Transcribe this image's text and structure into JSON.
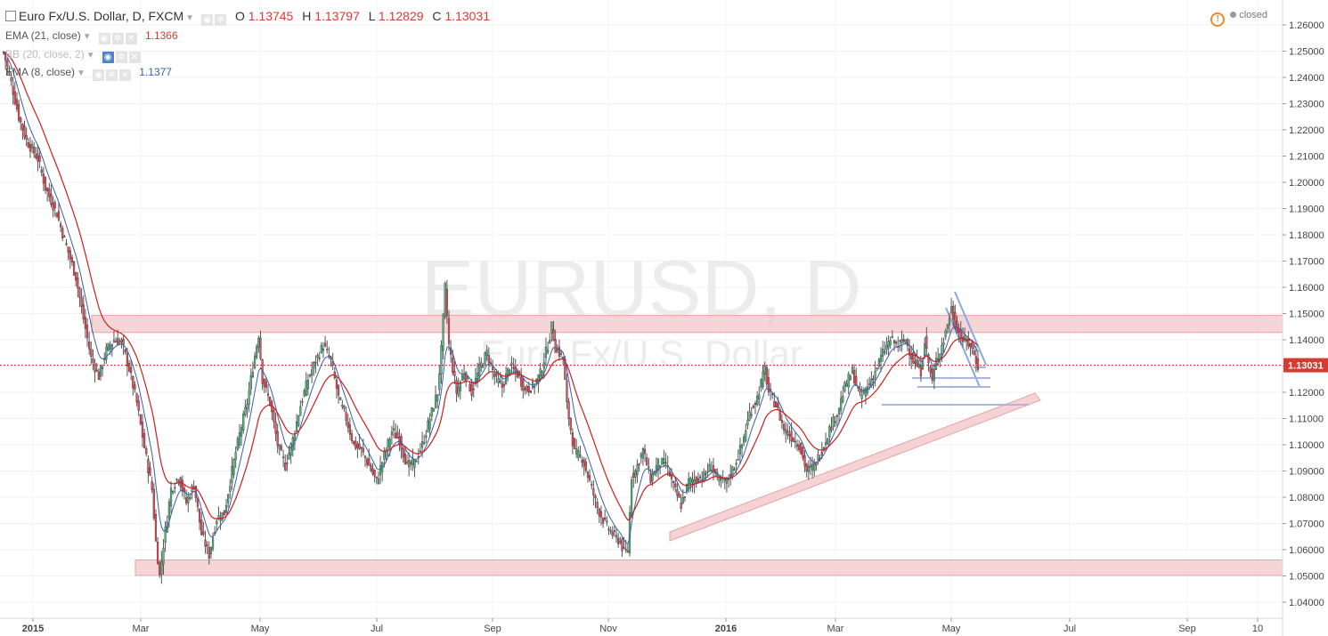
{
  "header": {
    "symbol_title": "Euro Fx/U.S. Dollar, D, FXCM",
    "ohlc": {
      "o_label": "O",
      "o": "1.13745",
      "h_label": "H",
      "h": "1.13797",
      "l_label": "L",
      "l": "1.12829",
      "c_label": "C",
      "c": "1.13031"
    },
    "status": "closed"
  },
  "indicators": [
    {
      "label": "EMA (21, close)",
      "value": "1.1366",
      "color": "#cc1f1f"
    },
    {
      "label": "BB (20, close, 2)",
      "value": "",
      "color": "#4a86c8"
    },
    {
      "label": "EMA (8, close)",
      "value": "1.1377",
      "color": "#3b5fa6"
    }
  ],
  "watermark": {
    "symbol": "EURUSD, D",
    "description": "Euro Fx/U.S. Dollar"
  },
  "chart_data": {
    "type": "candlestick",
    "title": "Euro Fx/U.S. Dollar, D, FXCM",
    "ylim": [
      1.035,
      1.265
    ],
    "y_ticks": [
      "1.26000",
      "1.25000",
      "1.24000",
      "1.23000",
      "1.22000",
      "1.21000",
      "1.20000",
      "1.19000",
      "1.18000",
      "1.17000",
      "1.16000",
      "1.15000",
      "1.14000",
      "1.13000",
      "1.12000",
      "1.11000",
      "1.10000",
      "1.09000",
      "1.08000",
      "1.07000",
      "1.06000",
      "1.05000",
      "1.04000"
    ],
    "x_ticks": [
      "2015",
      "Mar",
      "May",
      "Jul",
      "Sep",
      "Nov",
      "2016",
      "Mar",
      "May",
      "Jul",
      "Sep",
      "10"
    ],
    "last_price": "1.13031",
    "colors": {
      "up": "#53b987",
      "down": "#eb4d5c",
      "ema21": "#cc1f1f",
      "ema8": "#3b5fa6",
      "zone": "#f3c7c9",
      "trend": "#8aa9e0"
    },
    "close_series": [
      [
        0,
        1.2495
      ],
      [
        4,
        1.238
      ],
      [
        8,
        1.225
      ],
      [
        12,
        1.216
      ],
      [
        18,
        1.209
      ],
      [
        22,
        1.198
      ],
      [
        28,
        1.188
      ],
      [
        32,
        1.178
      ],
      [
        38,
        1.164
      ],
      [
        42,
        1.148
      ],
      [
        46,
        1.133
      ],
      [
        50,
        1.126
      ],
      [
        54,
        1.136
      ],
      [
        58,
        1.14
      ],
      [
        62,
        1.139
      ],
      [
        66,
        1.129
      ],
      [
        70,
        1.116
      ],
      [
        74,
        1.099
      ],
      [
        78,
        1.083
      ],
      [
        80,
        1.063
      ],
      [
        82,
        1.05
      ],
      [
        84,
        1.062
      ],
      [
        88,
        1.083
      ],
      [
        92,
        1.088
      ],
      [
        96,
        1.078
      ],
      [
        100,
        1.085
      ],
      [
        104,
        1.066
      ],
      [
        108,
        1.058
      ],
      [
        112,
        1.072
      ],
      [
        116,
        1.074
      ],
      [
        120,
        1.09
      ],
      [
        124,
        1.104
      ],
      [
        128,
        1.116
      ],
      [
        132,
        1.134
      ],
      [
        134,
        1.142
      ],
      [
        136,
        1.125
      ],
      [
        140,
        1.116
      ],
      [
        144,
        1.1
      ],
      [
        148,
        1.092
      ],
      [
        152,
        1.102
      ],
      [
        156,
        1.115
      ],
      [
        160,
        1.125
      ],
      [
        164,
        1.132
      ],
      [
        168,
        1.138
      ],
      [
        172,
        1.132
      ],
      [
        176,
        1.118
      ],
      [
        180,
        1.11
      ],
      [
        184,
        1.1
      ],
      [
        188,
        1.098
      ],
      [
        192,
        1.092
      ],
      [
        196,
        1.086
      ],
      [
        200,
        1.096
      ],
      [
        204,
        1.105
      ],
      [
        208,
        1.102
      ],
      [
        212,
        1.092
      ],
      [
        216,
        1.093
      ],
      [
        220,
        1.1
      ],
      [
        224,
        1.11
      ],
      [
        228,
        1.12
      ],
      [
        230,
        1.136
      ],
      [
        232,
        1.16
      ],
      [
        234,
        1.138
      ],
      [
        238,
        1.12
      ],
      [
        242,
        1.128
      ],
      [
        246,
        1.12
      ],
      [
        250,
        1.129
      ],
      [
        254,
        1.135
      ],
      [
        258,
        1.126
      ],
      [
        262,
        1.122
      ],
      [
        266,
        1.13
      ],
      [
        270,
        1.127
      ],
      [
        274,
        1.121
      ],
      [
        278,
        1.122
      ],
      [
        282,
        1.127
      ],
      [
        286,
        1.138
      ],
      [
        288,
        1.145
      ],
      [
        290,
        1.137
      ],
      [
        294,
        1.133
      ],
      [
        296,
        1.115
      ],
      [
        300,
        1.097
      ],
      [
        304,
        1.095
      ],
      [
        308,
        1.086
      ],
      [
        312,
        1.076
      ],
      [
        316,
        1.07
      ],
      [
        320,
        1.066
      ],
      [
        324,
        1.063
      ],
      [
        326,
        1.059
      ],
      [
        328,
        1.06
      ],
      [
        330,
        1.088
      ],
      [
        332,
        1.09
      ],
      [
        336,
        1.098
      ],
      [
        340,
        1.087
      ],
      [
        344,
        1.093
      ],
      [
        348,
        1.093
      ],
      [
        352,
        1.084
      ],
      [
        356,
        1.077
      ],
      [
        360,
        1.086
      ],
      [
        364,
        1.087
      ],
      [
        368,
        1.088
      ],
      [
        372,
        1.092
      ],
      [
        376,
        1.086
      ],
      [
        380,
        1.086
      ],
      [
        384,
        1.092
      ],
      [
        388,
        1.1
      ],
      [
        392,
        1.112
      ],
      [
        396,
        1.118
      ],
      [
        400,
        1.129
      ],
      [
        402,
        1.12
      ],
      [
        406,
        1.115
      ],
      [
        410,
        1.106
      ],
      [
        414,
        1.103
      ],
      [
        418,
        1.1
      ],
      [
        422,
        1.09
      ],
      [
        426,
        1.092
      ],
      [
        430,
        1.098
      ],
      [
        434,
        1.106
      ],
      [
        438,
        1.112
      ],
      [
        442,
        1.122
      ],
      [
        446,
        1.128
      ],
      [
        450,
        1.118
      ],
      [
        454,
        1.122
      ],
      [
        458,
        1.128
      ],
      [
        462,
        1.135
      ],
      [
        466,
        1.14
      ],
      [
        470,
        1.138
      ],
      [
        474,
        1.14
      ],
      [
        478,
        1.132
      ],
      [
        482,
        1.128
      ],
      [
        484,
        1.14
      ],
      [
        486,
        1.131
      ],
      [
        488,
        1.124
      ],
      [
        490,
        1.132
      ],
      [
        494,
        1.14
      ],
      [
        498,
        1.152
      ],
      [
        500,
        1.146
      ],
      [
        504,
        1.14
      ],
      [
        508,
        1.138
      ],
      [
        512,
        1.1303
      ]
    ],
    "zones": [
      {
        "top": 1.1493,
        "bottom": 1.1428
      },
      {
        "top": 1.0561,
        "bottom": 1.0502
      }
    ]
  }
}
